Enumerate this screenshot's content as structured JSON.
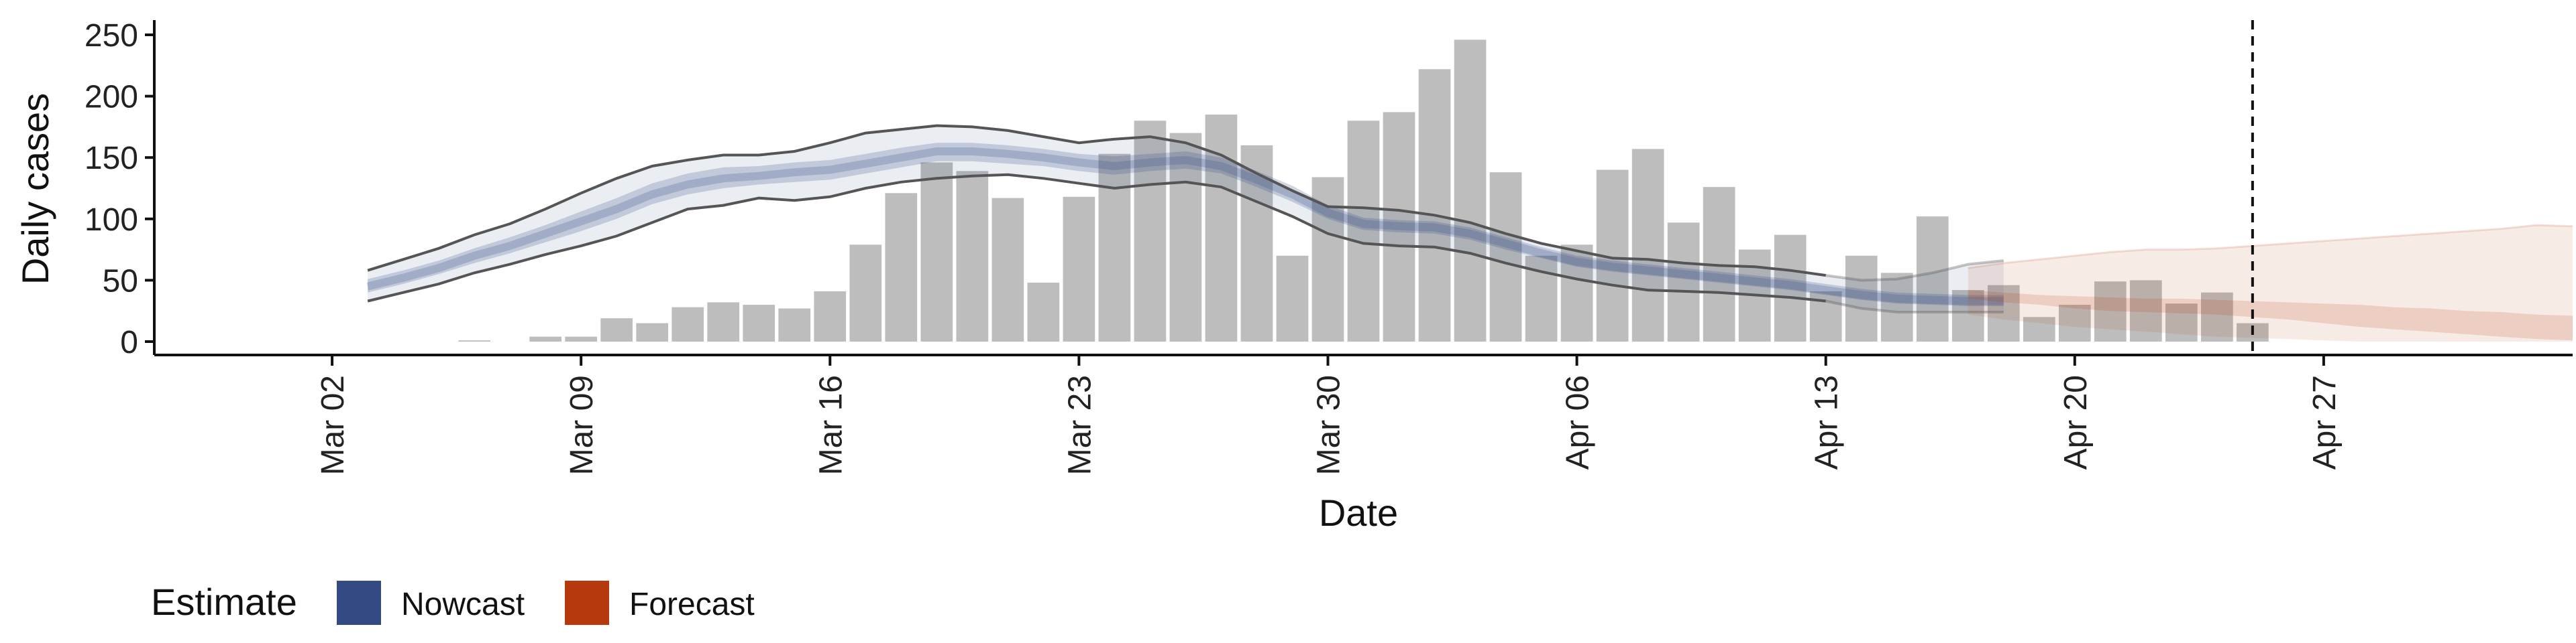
{
  "chart_data": {
    "type": "bar",
    "ylabel": "Daily cases",
    "xlabel": "Date",
    "ylim": [
      0,
      260
    ],
    "yticks": [
      0,
      50,
      100,
      150,
      200,
      250
    ],
    "xlim": [
      "2020-02-26",
      "2020-05-04"
    ],
    "xticks": [
      {
        "date": "2020-03-02",
        "label": "Mar 02"
      },
      {
        "date": "2020-03-09",
        "label": "Mar 09"
      },
      {
        "date": "2020-03-16",
        "label": "Mar 16"
      },
      {
        "date": "2020-03-23",
        "label": "Mar 23"
      },
      {
        "date": "2020-03-30",
        "label": "Mar 30"
      },
      {
        "date": "2020-04-06",
        "label": "Apr 06"
      },
      {
        "date": "2020-04-13",
        "label": "Apr 13"
      },
      {
        "date": "2020-04-20",
        "label": "Apr 20"
      },
      {
        "date": "2020-04-27",
        "label": "Apr 27"
      }
    ],
    "bars": {
      "start_date": "2020-03-06",
      "values": [
        1,
        0,
        4,
        4,
        19,
        15,
        28,
        32,
        30,
        27,
        41,
        79,
        121,
        146,
        139,
        117,
        48,
        118,
        153,
        180,
        170,
        185,
        160,
        70,
        134,
        180,
        187,
        222,
        246,
        138,
        70,
        79,
        140,
        157,
        97,
        126,
        75,
        87,
        41,
        70,
        56,
        102,
        42,
        46,
        20,
        30,
        49,
        50,
        31,
        40,
        15
      ]
    },
    "nowcast": {
      "start_date": "2020-03-03",
      "median": [
        45,
        52,
        60,
        70,
        78,
        88,
        98,
        108,
        120,
        128,
        133,
        135,
        138,
        140,
        145,
        150,
        155,
        155,
        153,
        150,
        146,
        143,
        146,
        148,
        143,
        132,
        120,
        105,
        96,
        94,
        93,
        88,
        80,
        72,
        65,
        61,
        58,
        55,
        52,
        49,
        46,
        42,
        38,
        35,
        34,
        33,
        33
      ],
      "inner_lower": [
        40,
        47,
        55,
        64,
        72,
        81,
        90,
        100,
        112,
        120,
        125,
        128,
        130,
        132,
        137,
        142,
        147,
        147,
        145,
        143,
        139,
        136,
        139,
        141,
        137,
        126,
        114,
        100,
        91,
        89,
        88,
        83,
        75,
        68,
        61,
        57,
        54,
        51,
        48,
        45,
        42,
        38,
        34,
        31,
        30,
        29,
        29
      ],
      "inner_upper": [
        51,
        58,
        66,
        76,
        85,
        95,
        106,
        117,
        129,
        137,
        142,
        143,
        146,
        148,
        153,
        158,
        162,
        162,
        160,
        157,
        153,
        151,
        153,
        155,
        150,
        139,
        127,
        111,
        101,
        99,
        98,
        93,
        85,
        77,
        70,
        66,
        63,
        60,
        57,
        54,
        51,
        47,
        43,
        40,
        39,
        38,
        38
      ],
      "outer_lower": [
        33,
        40,
        47,
        56,
        63,
        71,
        78,
        86,
        97,
        108,
        111,
        117,
        115,
        118,
        125,
        130,
        133,
        135,
        136,
        133,
        129,
        125,
        128,
        130,
        126,
        114,
        102,
        88,
        80,
        78,
        77,
        72,
        64,
        57,
        51,
        46,
        42,
        41,
        40,
        38,
        36,
        33,
        27,
        24,
        24,
        24,
        24
      ],
      "outer_upper": [
        58,
        67,
        76,
        87,
        96,
        108,
        121,
        133,
        143,
        148,
        152,
        152,
        155,
        162,
        170,
        173,
        176,
        175,
        172,
        167,
        162,
        165,
        167,
        162,
        152,
        137,
        123,
        110,
        109,
        107,
        103,
        97,
        88,
        80,
        74,
        68,
        67,
        64,
        62,
        61,
        58,
        54,
        50,
        51,
        56,
        63,
        66
      ]
    },
    "forecast": {
      "start_date": "2020-04-17",
      "outer_lower": [
        22,
        18,
        15,
        12,
        10,
        8,
        6,
        4,
        3,
        2,
        1,
        0,
        0,
        0,
        0,
        0,
        0,
        0
      ],
      "outer_upper": [
        60,
        64,
        67,
        70,
        73,
        75,
        75,
        76,
        78,
        80,
        82,
        84,
        86,
        88,
        90,
        92,
        95,
        94
      ],
      "inner_lower": [
        35,
        32,
        30,
        27,
        25,
        24,
        23,
        22,
        20,
        18,
        15,
        12,
        10,
        8,
        6,
        4,
        2,
        1
      ],
      "inner_upper": [
        42,
        40,
        38,
        37,
        36,
        35,
        35,
        34,
        33,
        32,
        31,
        30,
        28,
        27,
        25,
        24,
        22,
        21
      ]
    },
    "reference_line": {
      "date": "2020-04-25"
    },
    "legend": {
      "title": "Estimate",
      "position": "bottom-left",
      "items": [
        {
          "label": "Nowcast",
          "color": "#344a82"
        },
        {
          "label": "Forecast",
          "color": "#b5390c"
        }
      ]
    },
    "colors": {
      "bars": "#bdbdbd",
      "nowcast": "#344a82",
      "forecast": "#b5390c",
      "outer_line": "#555555"
    },
    "grid": false
  }
}
